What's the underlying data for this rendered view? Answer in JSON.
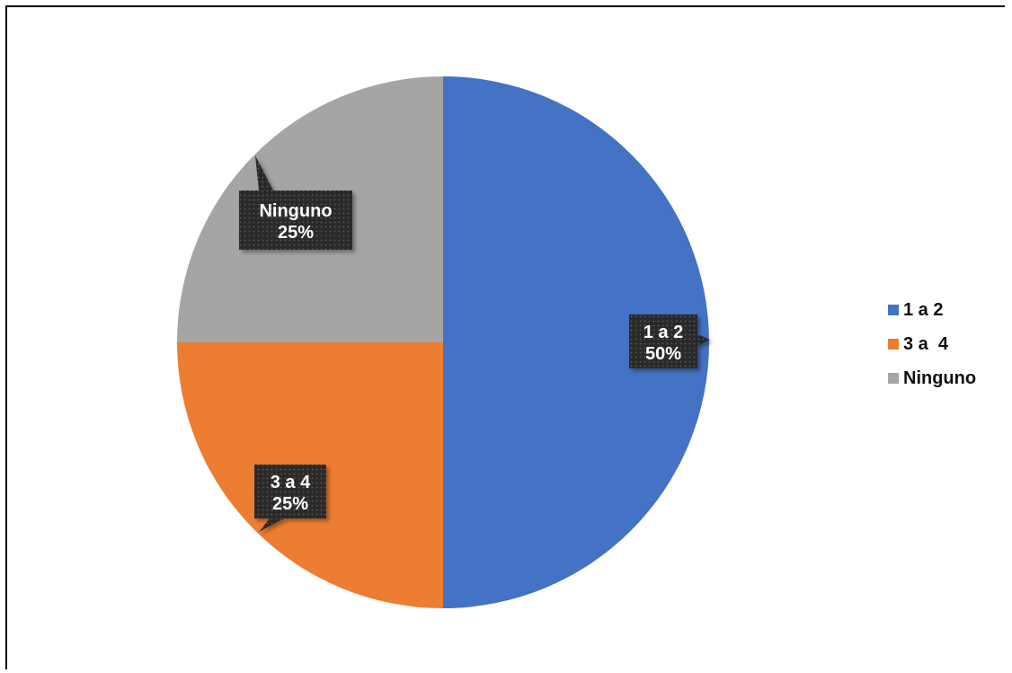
{
  "chart_data": {
    "type": "pie",
    "title": "",
    "categories": [
      "1 a 2",
      "3 a  4",
      "Ninguno"
    ],
    "values": [
      50,
      25,
      25
    ],
    "value_labels": [
      "50%",
      "25%",
      "25%"
    ],
    "colors": [
      "#4472C4",
      "#ED7D31",
      "#A5A5A5"
    ],
    "legend_position": "right",
    "start_angle": "12 o'clock",
    "direction": "clockwise"
  }
}
